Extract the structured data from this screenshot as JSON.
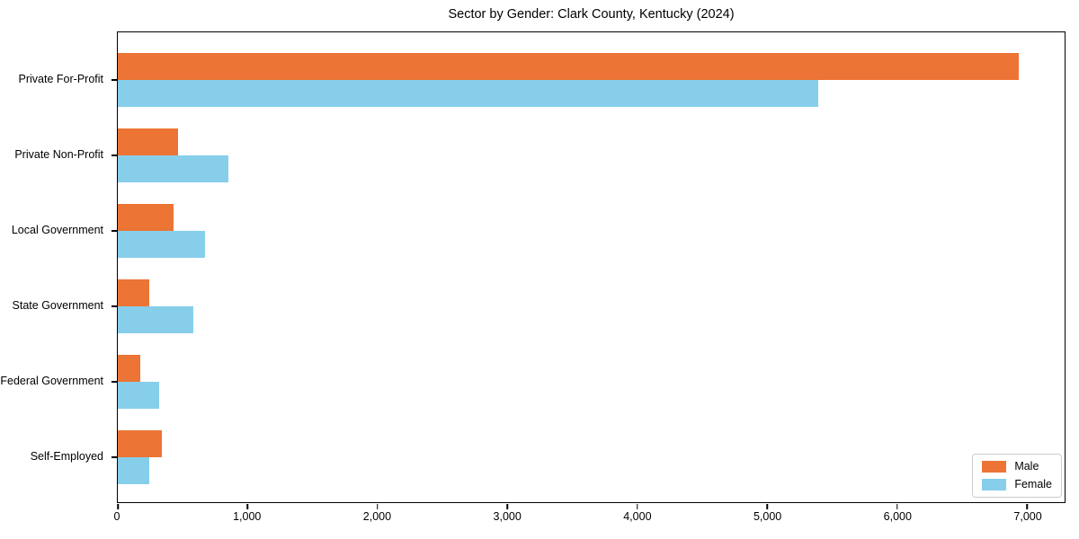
{
  "chart_data": {
    "type": "bar",
    "orientation": "horizontal",
    "title": "Sector by Gender: Clark County, Kentucky (2024)",
    "xlabel": "",
    "ylabel": "",
    "grid": false,
    "legend_position": "lower right",
    "xlim": [
      0,
      7290
    ],
    "categories": [
      "Private For-Profit",
      "Private Non-Profit",
      "Local Government",
      "State Government",
      "Federal Government",
      "Self-Employed"
    ],
    "series": [
      {
        "name": "Male",
        "color": "#EC7434",
        "values": [
          6940,
          465,
          430,
          240,
          175,
          340
        ]
      },
      {
        "name": "Female",
        "color": "#87CEEB",
        "values": [
          5390,
          850,
          670,
          580,
          320,
          245
        ]
      }
    ],
    "x_ticks": [
      {
        "value": 0,
        "label": "0"
      },
      {
        "value": 1000,
        "label": "1,000"
      },
      {
        "value": 2000,
        "label": "2,000"
      },
      {
        "value": 3000,
        "label": "3,000"
      },
      {
        "value": 4000,
        "label": "4,000"
      },
      {
        "value": 5000,
        "label": "5,000"
      },
      {
        "value": 6000,
        "label": "6,000"
      },
      {
        "value": 7000,
        "label": "7,000"
      }
    ]
  }
}
